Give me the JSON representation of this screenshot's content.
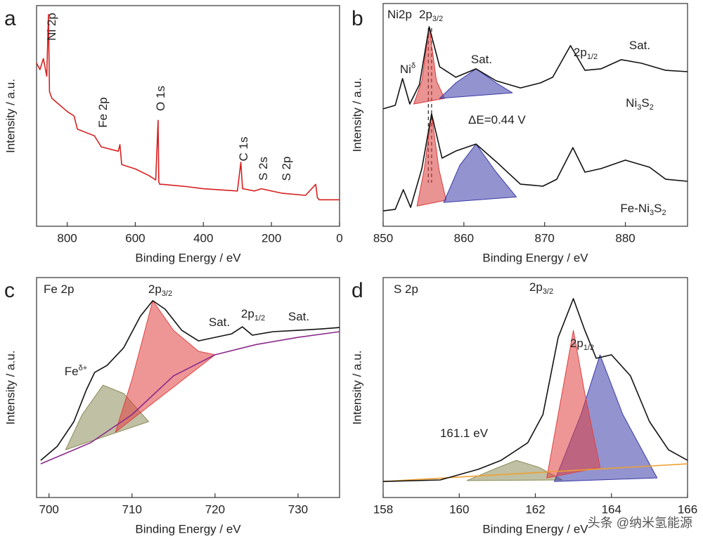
{
  "chart_data": [
    {
      "type": "line",
      "panel_label": "a",
      "xlabel": "Binding Energy / eV",
      "ylabel": "Intensity / a.u.",
      "xlim": [
        890,
        0
      ],
      "xticks": [
        800,
        600,
        400,
        200,
        0
      ],
      "ylim": [
        0,
        100
      ],
      "series": [
        {
          "color": "#d62020",
          "area": false,
          "x": [
            890,
            880,
            870,
            860,
            855,
            852,
            845,
            800,
            780,
            770,
            720,
            712,
            700,
            650,
            645,
            640,
            600,
            560,
            540,
            533,
            531,
            528,
            520,
            450,
            400,
            300,
            290,
            285,
            282,
            250,
            230,
            170,
            100,
            70,
            65,
            60,
            20,
            0
          ],
          "values": [
            74,
            71,
            76,
            68,
            96,
            61,
            58,
            52,
            50,
            44,
            41,
            39,
            36,
            34,
            37,
            28,
            26,
            23,
            21,
            48,
            20,
            19,
            19,
            18,
            17,
            16,
            29,
            17,
            17,
            16,
            17,
            15,
            14,
            19,
            13,
            12,
            12,
            12
          ]
        }
      ],
      "annotations": [
        [
          {
            "text": "Ni 2p"
          }
        ],
        [
          {
            "text": "Fe 2p"
          }
        ],
        [
          {
            "text": "O 1s"
          }
        ],
        [
          {
            "text": "C 1s"
          }
        ],
        [
          {
            "text": "S 2s"
          }
        ],
        [
          {
            "text": "S 2p"
          }
        ]
      ]
    },
    {
      "type": "line",
      "panel_label": "b",
      "xlabel": "Binding Energy / eV",
      "ylabel": "Intensity / a.u.",
      "xlim": [
        850,
        887.7
      ],
      "xticks": [
        850,
        860,
        870,
        880
      ],
      "ylim": [
        0,
        100
      ],
      "vlines": [
        855.6,
        856.0
      ],
      "series": [
        {
          "color": "#d83a3a",
          "area": true,
          "x": [
            853.8,
            854.8,
            855.7,
            856.6,
            857.6
          ],
          "values": [
            54.9,
            65.3,
            89.6,
            65.3,
            57.4
          ]
        },
        {
          "color": "#3a3aa8",
          "area": true,
          "x": [
            857,
            859,
            861.5,
            864,
            866
          ],
          "values": [
            57.4,
            64.4,
            70.7,
            64.4,
            59.9
          ]
        },
        {
          "color": "#111111",
          "area": false,
          "x": [
            850,
            851.5,
            852.4,
            853.3,
            854.5,
            855.7,
            857,
            859,
            861.5,
            864,
            867,
            869.5,
            871,
            873.2,
            875,
            877,
            879.5,
            882,
            885,
            887.7
          ],
          "values": [
            52.7,
            54.3,
            66.3,
            54.9,
            63.7,
            89.6,
            71.6,
            66.9,
            70.7,
            65.3,
            62.1,
            64.4,
            66.9,
            81.1,
            70.0,
            70.7,
            74.8,
            73.2,
            70.0,
            69.4
          ]
        },
        {
          "color": "#d83a3a",
          "area": true,
          "x": [
            854.2,
            855.1,
            856,
            856.9,
            857.8
          ],
          "values": [
            9.1,
            25.9,
            50.5,
            25.9,
            11.7
          ]
        },
        {
          "color": "#3a3aa8",
          "area": true,
          "x": [
            857.5,
            859.5,
            861.5,
            864,
            866.5
          ],
          "values": [
            10.7,
            27.4,
            36.9,
            24.3,
            13.2
          ]
        },
        {
          "color": "#111111",
          "area": false,
          "x": [
            850,
            851.5,
            852.5,
            853.4,
            854.8,
            856,
            857.3,
            859,
            861.5,
            864,
            867,
            869.8,
            871.5,
            873.5,
            875,
            877,
            880,
            883,
            885,
            887.7
          ],
          "values": [
            6.9,
            7.6,
            16.4,
            8.5,
            25.9,
            50.5,
            30.6,
            33.8,
            36.9,
            29.0,
            18.9,
            18.0,
            21.1,
            35.3,
            24.3,
            25.9,
            29.7,
            26.5,
            21.1,
            20.2
          ]
        }
      ],
      "annotations": [
        [
          {
            "text": "Ni2p"
          }
        ],
        [
          {
            "text": "2p"
          },
          {
            "sub": "3/2"
          }
        ],
        [
          {
            "text": "Ni"
          },
          {
            "sup": "δ"
          }
        ],
        [
          {
            "text": "Sat."
          }
        ],
        [
          {
            "text": "2p"
          },
          {
            "sub": "1/2"
          }
        ],
        [
          {
            "text": "Sat."
          }
        ],
        [
          {
            "text": "Ni"
          },
          {
            "sub": "3"
          },
          {
            "text": "S"
          },
          {
            "sub": "2"
          }
        ],
        [
          {
            "text": "ΔE=0.44 V"
          }
        ],
        [
          {
            "text": "Fe-Ni"
          },
          {
            "sub": "3"
          },
          {
            "text": "S"
          },
          {
            "sub": "2"
          }
        ]
      ]
    },
    {
      "type": "line",
      "panel_label": "c",
      "xlabel": "Binding Energy / eV",
      "ylabel": "Intensity / a.u.",
      "xlim": [
        698.5,
        735
      ],
      "xticks": [
        700,
        710,
        720,
        730
      ],
      "ylim": [
        0,
        100
      ],
      "series": [
        {
          "color": "#8c8c5a",
          "area": true,
          "x": [
            702,
            704,
            706.5,
            709,
            712
          ],
          "values": [
            21.7,
            37.7,
            51.1,
            47.3,
            34.5
          ]
        },
        {
          "color": "#e04040",
          "area": true,
          "x": [
            708,
            710,
            712.5,
            715,
            718,
            720
          ],
          "values": [
            29.7,
            53.7,
            89.5,
            76.0,
            66.5,
            64.9
          ]
        },
        {
          "color": "#8a2a8a",
          "area": false,
          "x": [
            699,
            705,
            710,
            715,
            720,
            725,
            730,
            735
          ],
          "values": [
            15.3,
            24.9,
            37.7,
            55.3,
            64.9,
            69.6,
            72.8,
            75.4
          ]
        },
        {
          "color": "#111111",
          "area": false,
          "x": [
            699,
            701,
            703,
            704.5,
            705.5,
            707,
            709,
            711,
            712.5,
            714,
            716,
            718,
            720,
            722,
            723.3,
            724.5,
            727,
            730,
            733,
            735
          ],
          "values": [
            16.9,
            23.3,
            34.5,
            48.9,
            56.9,
            60.1,
            68.1,
            82.4,
            89.5,
            85.6,
            76.0,
            71.2,
            72.8,
            74.4,
            77.6,
            73.8,
            75.4,
            76.0,
            76.7,
            77.3
          ]
        }
      ],
      "annotations": [
        [
          {
            "text": "Fe 2p"
          }
        ],
        [
          {
            "text": "2p"
          },
          {
            "sub": "3/2"
          }
        ],
        [
          {
            "text": "Sat."
          }
        ],
        [
          {
            "text": "2p"
          },
          {
            "sub": "1/2"
          }
        ],
        [
          {
            "text": "Sat."
          }
        ],
        [
          {
            "text": "Fe"
          },
          {
            "sup": "δ+"
          }
        ]
      ]
    },
    {
      "type": "line",
      "panel_label": "d",
      "xlabel": "Binding Energy / eV",
      "ylabel": "Intensity / a.u.",
      "xlim": [
        158,
        166
      ],
      "xticks": [
        158,
        160,
        162,
        164,
        166
      ],
      "ylim": [
        0,
        100
      ],
      "series": [
        {
          "color": "#8c8c5a",
          "area": true,
          "x": [
            160.2,
            160.9,
            161.5,
            162.1,
            162.7
          ],
          "values": [
            7.7,
            12.8,
            16.9,
            13.7,
            8.0
          ]
        },
        {
          "color": "#3a3aa8",
          "area": true,
          "x": [
            162.5,
            163.2,
            163.7,
            164.3,
            165.2
          ],
          "values": [
            7.3,
            37.7,
            64.9,
            37.7,
            8.9
          ]
        },
        {
          "color": "#e04040",
          "area": true,
          "x": [
            162.3,
            162.7,
            163,
            163.3,
            163.7
          ],
          "values": [
            8.9,
            47.3,
            76.0,
            47.3,
            13.7
          ]
        },
        {
          "color": "#f0a030",
          "area": false,
          "x": [
            158,
            166
          ],
          "values": [
            7.3,
            15.3
          ]
        },
        {
          "color": "#111111",
          "area": false,
          "x": [
            158,
            159.5,
            160.5,
            161.1,
            161.8,
            162.2,
            162.6,
            163,
            163.3,
            163.6,
            164,
            164.5,
            165,
            165.5,
            166
          ],
          "values": [
            7.3,
            8.0,
            12.8,
            16.9,
            24.9,
            37.7,
            72.8,
            90.4,
            76.0,
            63.3,
            64.9,
            55.3,
            34.5,
            21.7,
            16.9
          ]
        }
      ],
      "annotations": [
        [
          {
            "text": "S 2p"
          }
        ],
        [
          {
            "text": "2p"
          },
          {
            "sub": "3/2"
          }
        ],
        [
          {
            "text": "2p"
          },
          {
            "sub": "1/2"
          }
        ],
        [
          {
            "text": "161.1 eV"
          }
        ]
      ]
    }
  ],
  "watermark": "头条 @纳米氢能源"
}
